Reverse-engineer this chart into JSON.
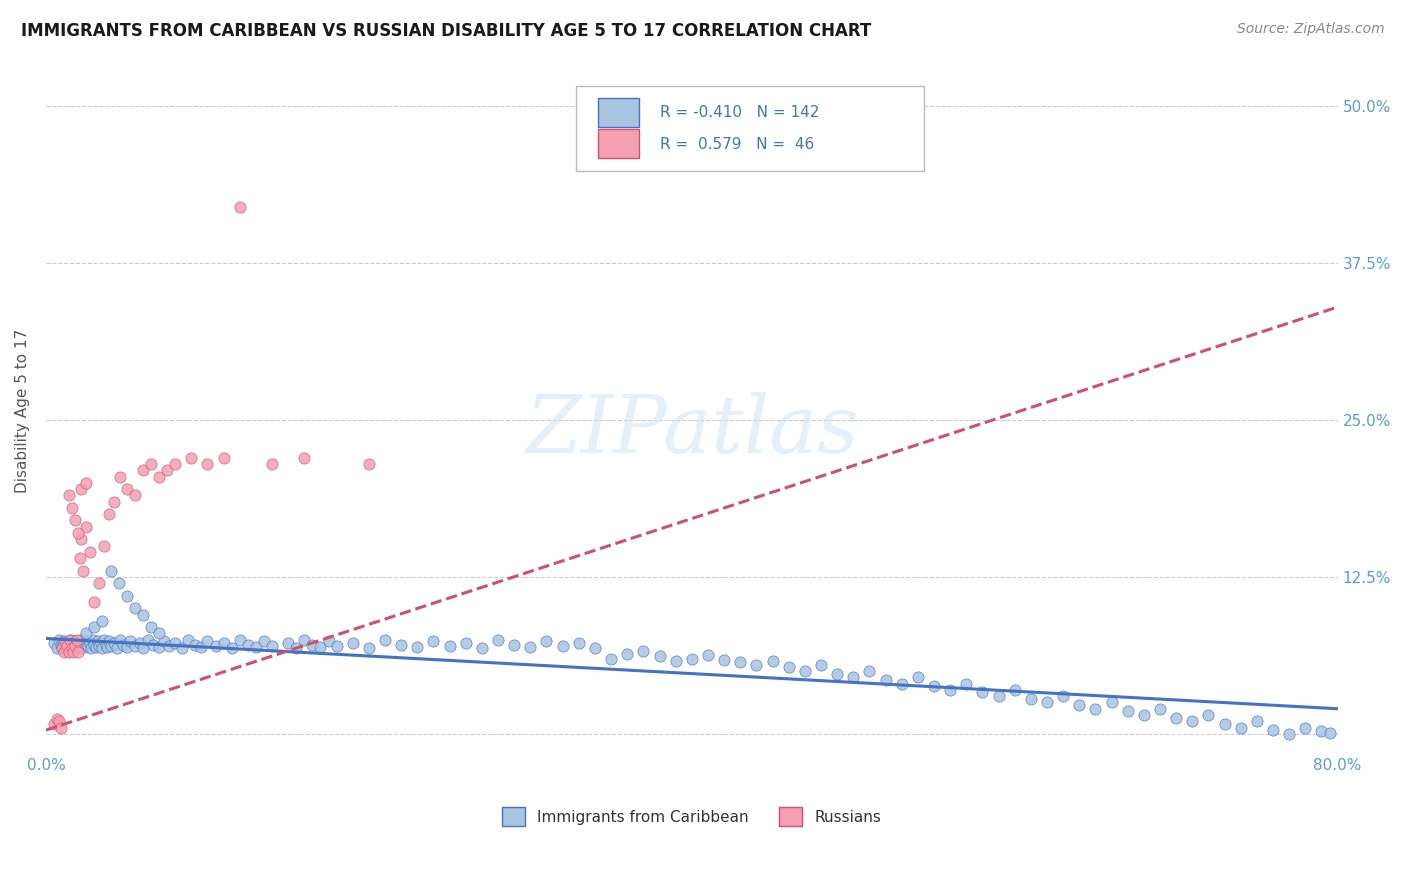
{
  "title": "IMMIGRANTS FROM CARIBBEAN VS RUSSIAN DISABILITY AGE 5 TO 17 CORRELATION CHART",
  "source": "Source: ZipAtlas.com",
  "ylabel_label": "Disability Age 5 to 17",
  "legend_label1": "Immigrants from Caribbean",
  "legend_label2": "Russians",
  "R1": "-0.410",
  "N1": "142",
  "R2": "0.579",
  "N2": "46",
  "color_caribbean": "#a8c4e0",
  "color_russian": "#f4a0b0",
  "color_trend_caribbean": "#4472c4",
  "color_trend_russian": "#d05070",
  "color_axis_ticks": "#5b9bd5",
  "xmin": 0.0,
  "xmax": 0.8,
  "ymin": -0.015,
  "ymax": 0.53,
  "caribbean_x": [
    0.005,
    0.007,
    0.008,
    0.009,
    0.01,
    0.011,
    0.012,
    0.013,
    0.014,
    0.015,
    0.016,
    0.017,
    0.018,
    0.019,
    0.02,
    0.021,
    0.022,
    0.023,
    0.024,
    0.025,
    0.026,
    0.027,
    0.028,
    0.029,
    0.03,
    0.031,
    0.032,
    0.033,
    0.034,
    0.035,
    0.036,
    0.037,
    0.038,
    0.039,
    0.04,
    0.042,
    0.044,
    0.046,
    0.048,
    0.05,
    0.052,
    0.055,
    0.058,
    0.06,
    0.063,
    0.066,
    0.07,
    0.073,
    0.076,
    0.08,
    0.084,
    0.088,
    0.092,
    0.096,
    0.1,
    0.105,
    0.11,
    0.115,
    0.12,
    0.125,
    0.13,
    0.135,
    0.14,
    0.15,
    0.155,
    0.16,
    0.165,
    0.17,
    0.175,
    0.18,
    0.19,
    0.2,
    0.21,
    0.22,
    0.23,
    0.24,
    0.25,
    0.26,
    0.27,
    0.28,
    0.29,
    0.3,
    0.31,
    0.32,
    0.33,
    0.34,
    0.35,
    0.36,
    0.37,
    0.38,
    0.39,
    0.4,
    0.41,
    0.42,
    0.43,
    0.44,
    0.45,
    0.46,
    0.47,
    0.48,
    0.49,
    0.5,
    0.51,
    0.52,
    0.53,
    0.54,
    0.55,
    0.56,
    0.57,
    0.58,
    0.59,
    0.6,
    0.61,
    0.62,
    0.63,
    0.64,
    0.65,
    0.66,
    0.67,
    0.68,
    0.69,
    0.7,
    0.71,
    0.72,
    0.73,
    0.74,
    0.75,
    0.76,
    0.77,
    0.78,
    0.79,
    0.795,
    0.025,
    0.03,
    0.035,
    0.04,
    0.045,
    0.05,
    0.055,
    0.06,
    0.065,
    0.07
  ],
  "caribbean_y": [
    0.072,
    0.068,
    0.075,
    0.071,
    0.069,
    0.074,
    0.07,
    0.073,
    0.068,
    0.075,
    0.071,
    0.069,
    0.074,
    0.07,
    0.072,
    0.068,
    0.075,
    0.071,
    0.069,
    0.074,
    0.07,
    0.072,
    0.068,
    0.075,
    0.071,
    0.069,
    0.074,
    0.07,
    0.072,
    0.068,
    0.075,
    0.071,
    0.069,
    0.074,
    0.07,
    0.072,
    0.068,
    0.075,
    0.071,
    0.069,
    0.074,
    0.07,
    0.072,
    0.068,
    0.075,
    0.071,
    0.069,
    0.074,
    0.07,
    0.072,
    0.068,
    0.075,
    0.071,
    0.069,
    0.074,
    0.07,
    0.072,
    0.068,
    0.075,
    0.071,
    0.069,
    0.074,
    0.07,
    0.072,
    0.068,
    0.075,
    0.071,
    0.069,
    0.074,
    0.07,
    0.072,
    0.068,
    0.075,
    0.071,
    0.069,
    0.074,
    0.07,
    0.072,
    0.068,
    0.075,
    0.071,
    0.069,
    0.074,
    0.07,
    0.072,
    0.068,
    0.06,
    0.064,
    0.066,
    0.062,
    0.058,
    0.06,
    0.063,
    0.059,
    0.057,
    0.055,
    0.058,
    0.053,
    0.05,
    0.055,
    0.048,
    0.045,
    0.05,
    0.043,
    0.04,
    0.045,
    0.038,
    0.035,
    0.04,
    0.033,
    0.03,
    0.035,
    0.028,
    0.025,
    0.03,
    0.023,
    0.02,
    0.025,
    0.018,
    0.015,
    0.02,
    0.013,
    0.01,
    0.015,
    0.008,
    0.005,
    0.01,
    0.003,
    0.0,
    0.005,
    0.002,
    0.001,
    0.08,
    0.085,
    0.09,
    0.13,
    0.12,
    0.11,
    0.1,
    0.095,
    0.085,
    0.08
  ],
  "russian_x": [
    0.005,
    0.007,
    0.008,
    0.009,
    0.01,
    0.011,
    0.012,
    0.013,
    0.014,
    0.015,
    0.016,
    0.017,
    0.018,
    0.019,
    0.02,
    0.021,
    0.022,
    0.023,
    0.025,
    0.027,
    0.03,
    0.033,
    0.036,
    0.039,
    0.042,
    0.046,
    0.05,
    0.055,
    0.06,
    0.065,
    0.07,
    0.075,
    0.08,
    0.09,
    0.1,
    0.11,
    0.12,
    0.14,
    0.16,
    0.2,
    0.014,
    0.016,
    0.018,
    0.02,
    0.022,
    0.025
  ],
  "russian_y": [
    0.008,
    0.012,
    0.01,
    0.005,
    0.068,
    0.065,
    0.073,
    0.07,
    0.065,
    0.075,
    0.068,
    0.065,
    0.07,
    0.075,
    0.065,
    0.14,
    0.155,
    0.13,
    0.165,
    0.145,
    0.105,
    0.12,
    0.15,
    0.175,
    0.185,
    0.205,
    0.195,
    0.19,
    0.21,
    0.215,
    0.205,
    0.21,
    0.215,
    0.22,
    0.215,
    0.22,
    0.42,
    0.215,
    0.22,
    0.215,
    0.19,
    0.18,
    0.17,
    0.16,
    0.195,
    0.2
  ],
  "trend_caribbean_x0": 0.0,
  "trend_caribbean_x1": 0.8,
  "trend_caribbean_y0": 0.076,
  "trend_caribbean_y1": 0.02,
  "trend_russian_x0": 0.0,
  "trend_russian_x1": 0.8,
  "trend_russian_y0": 0.003,
  "trend_russian_y1": 0.34
}
